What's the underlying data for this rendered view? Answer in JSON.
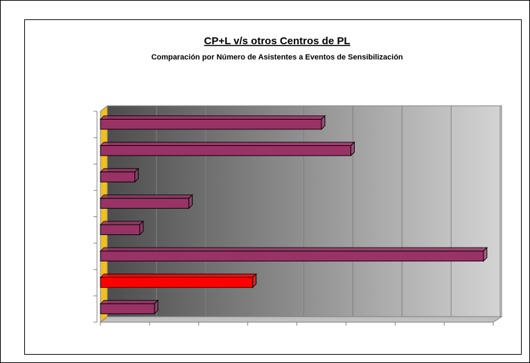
{
  "chart_data": {
    "type": "bar",
    "orientation": "horizontal",
    "title": "CP+L v/s otros Centros de PL",
    "subtitle": "Comparación por Número de Asistentes a Eventos de Sensibilización",
    "categories": [
      null,
      null,
      null,
      null,
      null,
      null,
      null,
      null
    ],
    "values": [
      4.5,
      5.1,
      0.7,
      1.8,
      0.8,
      7.8,
      3.1,
      1.1
    ],
    "colors": [
      "#993366",
      "#993366",
      "#993366",
      "#993366",
      "#993366",
      "#993366",
      "#ff0000",
      "#993366"
    ],
    "xlim": [
      0,
      8
    ],
    "xticks": [
      0,
      1,
      2,
      3,
      4,
      5,
      6,
      7,
      8
    ],
    "grid": true
  }
}
